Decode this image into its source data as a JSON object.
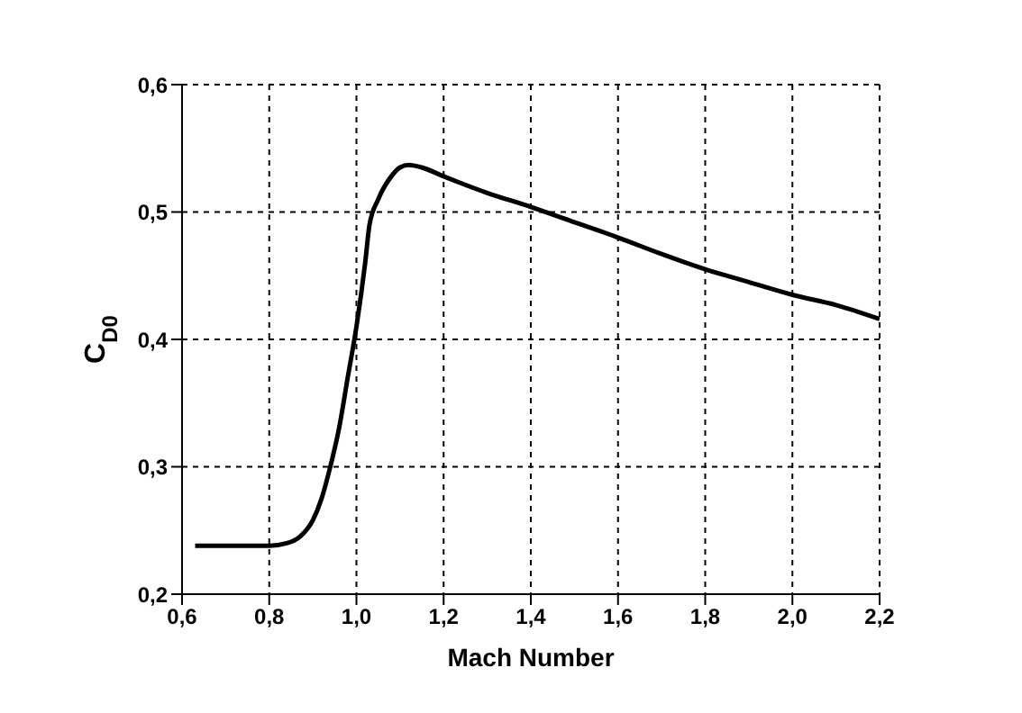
{
  "chart_data": {
    "type": "line",
    "xlabel": "Mach Number",
    "ylabel": "C$_{D0}$",
    "x": [
      0.63,
      0.7,
      0.8,
      0.84,
      0.87,
      0.9,
      0.92,
      0.94,
      0.96,
      0.98,
      1.0,
      1.02,
      1.03,
      1.05,
      1.08,
      1.1,
      1.12,
      1.15,
      1.2,
      1.3,
      1.4,
      1.5,
      1.6,
      1.7,
      1.8,
      1.9,
      2.0,
      2.1,
      2.2
    ],
    "series": [
      {
        "color": "#000000",
        "values": [
          0.238,
          0.238,
          0.238,
          0.24,
          0.245,
          0.258,
          0.275,
          0.3,
          0.33,
          0.37,
          0.41,
          0.46,
          0.49,
          0.51,
          0.528,
          0.535,
          0.537,
          0.535,
          0.528,
          0.515,
          0.504,
          0.492,
          0.48,
          0.467,
          0.455,
          0.445,
          0.435,
          0.427,
          0.416
        ]
      }
    ],
    "xlim": [
      0.6,
      2.2
    ],
    "ylim": [
      0.2,
      0.6
    ],
    "xticks": [
      {
        "value": 0.6,
        "label": "0,6"
      },
      {
        "value": 0.8,
        "label": "0,8"
      },
      {
        "value": 1.0,
        "label": "1,0"
      },
      {
        "value": 1.2,
        "label": "1,2"
      },
      {
        "value": 1.4,
        "label": "1,4"
      },
      {
        "value": 1.6,
        "label": "1,6"
      },
      {
        "value": 1.8,
        "label": "1,8"
      },
      {
        "value": 2.0,
        "label": "2,0"
      },
      {
        "value": 2.2,
        "label": "2,2"
      }
    ],
    "yticks": [
      {
        "value": 0.2,
        "label": "0,2"
      },
      {
        "value": 0.3,
        "label": "0,3"
      },
      {
        "value": 0.4,
        "label": "0,4"
      },
      {
        "value": 0.5,
        "label": "0,5"
      },
      {
        "value": 0.6,
        "label": "0,6"
      }
    ],
    "grid": true,
    "legend": false,
    "marker": "none",
    "line_style": "solid"
  }
}
